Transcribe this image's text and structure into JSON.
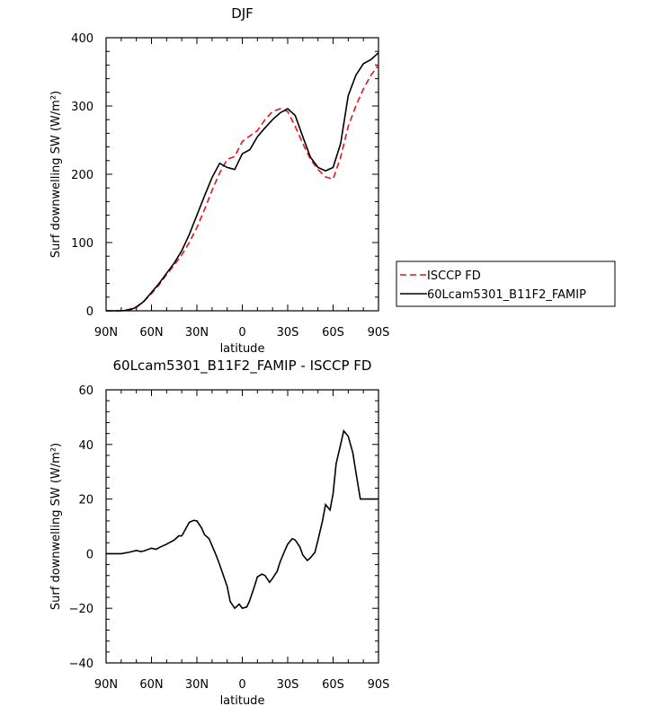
{
  "chart_data": [
    {
      "type": "line",
      "title": "DJF",
      "xlabel": "latitude",
      "ylabel": "Surf downwelling SW (W/m²)",
      "x_ticks": [
        "90N",
        "60N",
        "30N",
        "0",
        "30S",
        "60S",
        "90S"
      ],
      "x_tick_values": [
        -90,
        -60,
        -30,
        0,
        30,
        60,
        90
      ],
      "ylim": [
        0,
        400
      ],
      "y_ticks": [
        0,
        100,
        200,
        300,
        400
      ],
      "legend": {
        "placement": "right",
        "entries": [
          "ISCCP FD",
          "60Lcam5301_B11F2_FAMIP"
        ]
      },
      "series": [
        {
          "name": "ISCCP FD",
          "color": "#e8141b",
          "dash": "dashed",
          "x": [
            -90,
            -80,
            -75,
            -70,
            -65,
            -60,
            -55,
            -50,
            -45,
            -40,
            -35,
            -30,
            -25,
            -20,
            -15,
            -10,
            -5,
            0,
            5,
            10,
            15,
            20,
            25,
            30,
            35,
            40,
            45,
            50,
            55,
            60,
            65,
            70,
            75,
            80,
            85,
            90
          ],
          "y": [
            0,
            0,
            2,
            6,
            14,
            25,
            38,
            53,
            67,
            82,
            100,
            122,
            148,
            176,
            202,
            222,
            226,
            248,
            256,
            264,
            280,
            292,
            296,
            292,
            270,
            245,
            222,
            207,
            196,
            193,
            225,
            270,
            300,
            325,
            345,
            360
          ]
        },
        {
          "name": "60Lcam5301_B11F2_FAMIP",
          "color": "#000000",
          "dash": "solid",
          "x": [
            -90,
            -80,
            -75,
            -70,
            -65,
            -60,
            -55,
            -50,
            -45,
            -40,
            -35,
            -30,
            -25,
            -20,
            -15,
            -10,
            -5,
            0,
            5,
            10,
            15,
            20,
            25,
            30,
            35,
            40,
            45,
            50,
            55,
            60,
            65,
            70,
            75,
            80,
            85,
            90
          ],
          "y": [
            0,
            0,
            1,
            5,
            14,
            27,
            40,
            55,
            70,
            88,
            112,
            140,
            168,
            195,
            216,
            210,
            207,
            230,
            236,
            255,
            268,
            280,
            290,
            296,
            286,
            255,
            225,
            210,
            205,
            210,
            245,
            315,
            345,
            362,
            368,
            378
          ]
        }
      ]
    },
    {
      "type": "line",
      "title": "60Lcam5301_B11F2_FAMIP - ISCCP FD",
      "xlabel": "latitude",
      "ylabel": "Surf downwelling SW (W/m²)",
      "x_ticks": [
        "90N",
        "60N",
        "30N",
        "0",
        "30S",
        "60S",
        "90S"
      ],
      "x_tick_values": [
        -90,
        -60,
        -30,
        0,
        30,
        60,
        90
      ],
      "ylim": [
        -40,
        60
      ],
      "y_ticks": [
        -40,
        -20,
        0,
        20,
        40,
        60
      ],
      "series": [
        {
          "color": "#000000",
          "dash": "solid",
          "x": [
            -90,
            -85,
            -80,
            -75,
            -70,
            -67,
            -65,
            -60,
            -57,
            -55,
            -50,
            -45,
            -42,
            -40,
            -35,
            -32,
            -30,
            -27,
            -25,
            -22,
            -20,
            -17,
            -15,
            -10,
            -8,
            -5,
            -2,
            0,
            3,
            5,
            8,
            10,
            13,
            15,
            18,
            20,
            23,
            25,
            28,
            30,
            33,
            35,
            38,
            40,
            43,
            45,
            48,
            50,
            53,
            55,
            58,
            60,
            62,
            65,
            67,
            70,
            73,
            75,
            78,
            80,
            83,
            85,
            90
          ],
          "y": [
            0,
            0,
            0,
            0.5,
            1.2,
            0.8,
            1,
            2,
            1.6,
            2.2,
            3.5,
            5,
            6.5,
            6.5,
            11.5,
            12.2,
            12,
            9.5,
            7,
            5.5,
            3,
            -1,
            -4,
            -12,
            -17.5,
            -20,
            -18.5,
            -20,
            -19.5,
            -17,
            -12,
            -8.5,
            -7.5,
            -8,
            -10.5,
            -9,
            -6.5,
            -3,
            1,
            3.5,
            5.5,
            5,
            2.5,
            -0.5,
            -2.5,
            -1.5,
            0.5,
            5,
            12,
            18,
            16,
            22,
            33,
            40,
            45,
            43,
            37,
            30,
            20,
            20,
            20,
            20,
            20
          ]
        }
      ]
    }
  ]
}
